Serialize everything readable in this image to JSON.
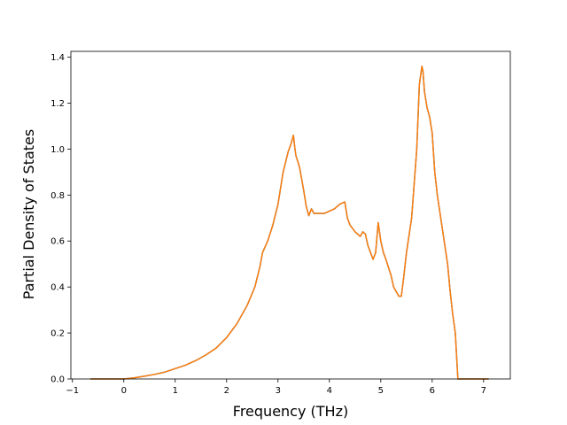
{
  "chart_data": {
    "type": "line",
    "title": "",
    "xlabel": "Frequency (THz)",
    "ylabel": "Partial Density of States",
    "xlim": [
      -1.03,
      7.52
    ],
    "ylim": [
      0.0,
      1.425
    ],
    "xticks": [
      -1,
      0,
      1,
      2,
      3,
      4,
      5,
      6,
      7
    ],
    "yticks": [
      0.0,
      0.2,
      0.4,
      0.6,
      0.8,
      1.0,
      1.2,
      1.4
    ],
    "xtick_labels": [
      "−1",
      "0",
      "1",
      "2",
      "3",
      "4",
      "5",
      "6",
      "7"
    ],
    "ytick_labels": [
      "0.0",
      "0.2",
      "0.4",
      "0.6",
      "0.8",
      "1.0",
      "1.2",
      "1.4"
    ],
    "grid": false,
    "legend": null,
    "series": [
      {
        "color": "#1f77b4",
        "x": [
          -0.65,
          -0.3,
          0.0,
          0.2,
          0.4,
          0.6,
          0.8,
          1.0,
          1.2,
          1.4,
          1.6,
          1.8,
          2.0,
          2.2,
          2.4,
          2.55,
          2.65,
          2.7,
          2.8,
          2.9,
          3.0,
          3.1,
          3.2,
          3.25,
          3.3,
          3.33,
          3.35,
          3.38,
          3.42,
          3.5,
          3.55,
          3.6,
          3.65,
          3.7,
          3.75,
          3.8,
          3.9,
          4.0,
          4.1,
          4.2,
          4.3,
          4.35,
          4.4,
          4.5,
          4.6,
          4.65,
          4.7,
          4.75,
          4.8,
          4.85,
          4.9,
          4.95,
          5.0,
          5.05,
          5.1,
          5.2,
          5.25,
          5.3,
          5.35,
          5.4,
          5.45,
          5.5,
          5.6,
          5.7,
          5.75,
          5.8,
          5.82,
          5.85,
          5.9,
          5.95,
          6.0,
          6.05,
          6.1,
          6.2,
          6.3,
          6.35,
          6.4,
          6.45,
          6.5,
          6.6,
          7.1
        ],
        "y": [
          0.0,
          0.0,
          0.0,
          0.005,
          0.012,
          0.02,
          0.03,
          0.045,
          0.06,
          0.08,
          0.105,
          0.135,
          0.18,
          0.24,
          0.32,
          0.4,
          0.49,
          0.55,
          0.6,
          0.67,
          0.76,
          0.9,
          0.99,
          1.02,
          1.06,
          1.0,
          0.97,
          0.95,
          0.92,
          0.82,
          0.75,
          0.71,
          0.74,
          0.72,
          0.72,
          0.72,
          0.72,
          0.73,
          0.74,
          0.76,
          0.77,
          0.7,
          0.67,
          0.64,
          0.62,
          0.64,
          0.63,
          0.58,
          0.55,
          0.52,
          0.55,
          0.68,
          0.6,
          0.55,
          0.52,
          0.45,
          0.4,
          0.38,
          0.36,
          0.36,
          0.45,
          0.55,
          0.7,
          1.0,
          1.28,
          1.36,
          1.34,
          1.25,
          1.18,
          1.14,
          1.07,
          0.9,
          0.8,
          0.65,
          0.5,
          0.38,
          0.28,
          0.2,
          0.0,
          0.0,
          0.0
        ]
      },
      {
        "color": "#ff7f0e",
        "x": [
          -0.65,
          -0.3,
          0.0,
          0.2,
          0.4,
          0.6,
          0.8,
          1.0,
          1.2,
          1.4,
          1.6,
          1.8,
          2.0,
          2.2,
          2.4,
          2.55,
          2.65,
          2.7,
          2.8,
          2.9,
          3.0,
          3.1,
          3.2,
          3.25,
          3.3,
          3.33,
          3.35,
          3.38,
          3.42,
          3.5,
          3.55,
          3.6,
          3.65,
          3.7,
          3.75,
          3.8,
          3.9,
          4.0,
          4.1,
          4.2,
          4.3,
          4.35,
          4.4,
          4.5,
          4.6,
          4.65,
          4.7,
          4.75,
          4.8,
          4.85,
          4.9,
          4.95,
          5.0,
          5.05,
          5.1,
          5.2,
          5.25,
          5.3,
          5.35,
          5.4,
          5.45,
          5.5,
          5.6,
          5.7,
          5.75,
          5.8,
          5.82,
          5.85,
          5.9,
          5.95,
          6.0,
          6.05,
          6.1,
          6.2,
          6.3,
          6.35,
          6.4,
          6.45,
          6.5,
          6.6,
          7.1
        ],
        "y": [
          0.0,
          0.0,
          0.0,
          0.005,
          0.012,
          0.02,
          0.03,
          0.045,
          0.06,
          0.08,
          0.105,
          0.135,
          0.18,
          0.24,
          0.32,
          0.4,
          0.49,
          0.55,
          0.6,
          0.67,
          0.76,
          0.9,
          0.99,
          1.02,
          1.06,
          1.0,
          0.97,
          0.95,
          0.92,
          0.82,
          0.75,
          0.71,
          0.74,
          0.72,
          0.72,
          0.72,
          0.72,
          0.73,
          0.74,
          0.76,
          0.77,
          0.7,
          0.67,
          0.64,
          0.62,
          0.64,
          0.63,
          0.58,
          0.55,
          0.52,
          0.55,
          0.68,
          0.6,
          0.55,
          0.52,
          0.45,
          0.4,
          0.38,
          0.36,
          0.36,
          0.45,
          0.55,
          0.7,
          1.0,
          1.28,
          1.36,
          1.34,
          1.25,
          1.18,
          1.14,
          1.07,
          0.9,
          0.8,
          0.65,
          0.5,
          0.38,
          0.28,
          0.2,
          0.0,
          0.0,
          0.0
        ]
      }
    ]
  }
}
